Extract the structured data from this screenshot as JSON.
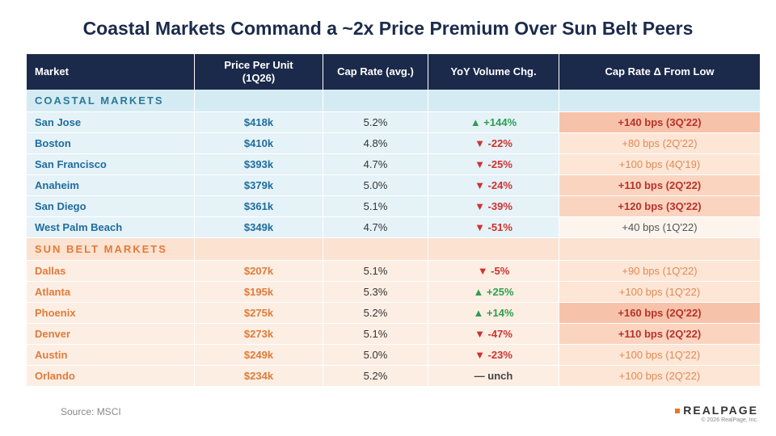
{
  "title": "Coastal Markets Command a ~2x Price Premium Over Sun Belt Peers",
  "table": {
    "header": [
      "Market",
      "Price Per Unit\n(1Q26)",
      "Cap Rate (avg.)",
      "YoY Volume Chg.",
      "Cap Rate Δ From Low"
    ],
    "sections": [
      {
        "label": "COASTAL MARKETS",
        "rows": [
          [
            "San Jose",
            "$418k",
            "5.2%",
            "▲ +144%",
            "+140 bps (3Q'22)"
          ],
          [
            "Boston",
            "$410k",
            "4.8%",
            "▼ -22%",
            "+80 bps (2Q'22)"
          ],
          [
            "San Francisco",
            "$393k",
            "4.7%",
            "▼ -25%",
            "+100 bps (4Q'19)"
          ],
          [
            "Anaheim",
            "$379k",
            "5.0%",
            "▼ -24%",
            "+110 bps (2Q'22)"
          ],
          [
            "San Diego",
            "$361k",
            "5.1%",
            "▼ -39%",
            "+120 bps (3Q'22)"
          ],
          [
            "West Palm Beach",
            "$349k",
            "4.7%",
            "▼ -51%",
            "+40 bps (1Q'22)"
          ]
        ]
      },
      {
        "label": "SUN BELT MARKETS",
        "rows": [
          [
            "Dallas",
            "$207k",
            "5.1%",
            "▼ -5%",
            "+90 bps (1Q'22)"
          ],
          [
            "Atlanta",
            "$195k",
            "5.3%",
            "▲ +25%",
            "+100 bps (1Q'22)"
          ],
          [
            "Phoenix",
            "$275k",
            "5.2%",
            "▲ +14%",
            "+160 bps (2Q'22)"
          ],
          [
            "Denver",
            "$273k",
            "5.1%",
            "▼ -47%",
            "+110 bps (2Q'22)"
          ],
          [
            "Austin",
            "$249k",
            "5.0%",
            "▼ -23%",
            "+100 bps (1Q'22)"
          ],
          [
            "Orlando",
            "$234k",
            "5.2%",
            "— unch",
            "+100 bps (2Q'22)"
          ]
        ]
      }
    ]
  },
  "source": "Source: MSCI",
  "logo": "REALPAGE",
  "copyright": "© 2026 RealPage, Inc."
}
